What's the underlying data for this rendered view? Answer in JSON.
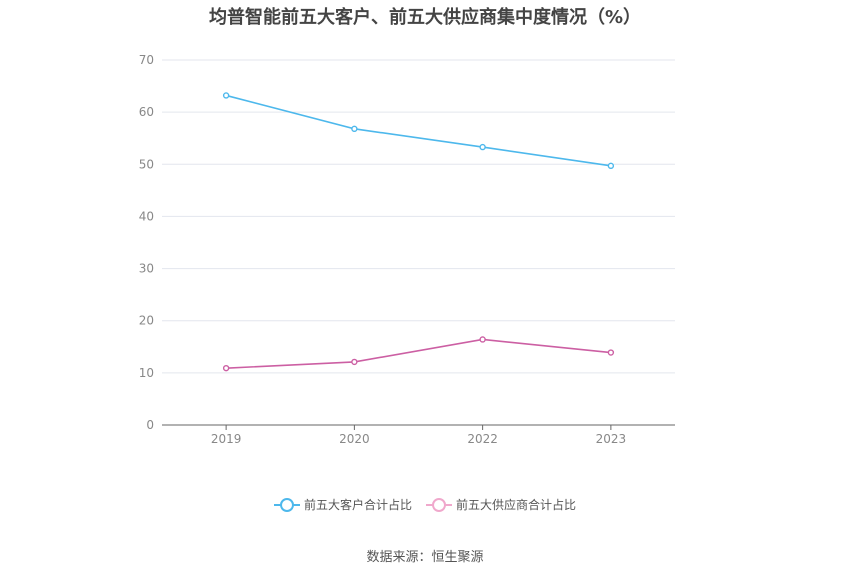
{
  "chart_data": {
    "type": "line",
    "title": "均普智能前五大客户、前五大供应商集中度情况（%）",
    "categories": [
      "2019",
      "2020",
      "2022",
      "2023"
    ],
    "series": [
      {
        "name": "前五大客户合计占比",
        "values": [
          63.2,
          56.8,
          53.3,
          49.7
        ],
        "color": "#4db8ec"
      },
      {
        "name": "前五大供应商合计占比",
        "values": [
          10.9,
          12.1,
          16.4,
          13.9
        ],
        "color": "#cc5fa3"
      }
    ],
    "ylim": [
      0,
      70
    ],
    "yticks": [
      "0",
      "10",
      "20",
      "30",
      "40",
      "50",
      "60",
      "70"
    ],
    "grid": true,
    "legend_position": "bottom",
    "legend_inactive_color": "#f0a8cc"
  },
  "source_text": "数据来源：恒生聚源"
}
